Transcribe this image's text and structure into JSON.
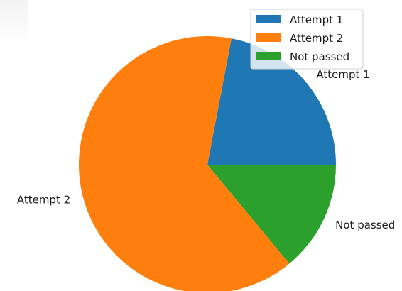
{
  "chart_data": {
    "type": "pie",
    "categories": [
      "Attempt 1",
      "Attempt 2",
      "Not passed"
    ],
    "values": [
      22,
      64,
      14
    ],
    "colors": [
      "#1f77b4",
      "#ff7f0e",
      "#2ca02c"
    ],
    "start_angle_deg": 0,
    "direction": "counterclockwise",
    "legend": {
      "location": "top-right",
      "entries": [
        "Attempt 1",
        "Attempt 2",
        "Not passed"
      ]
    }
  }
}
